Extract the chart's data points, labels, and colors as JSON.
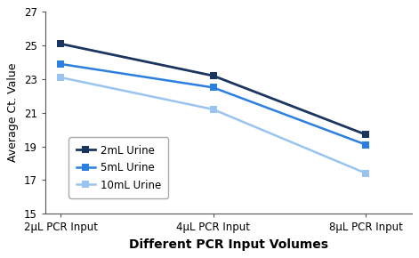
{
  "categories": [
    "2μL PCR Input",
    "4μL PCR Input",
    "8μL PCR Input"
  ],
  "series": [
    {
      "label": "2mL Urine",
      "values": [
        25.1,
        23.2,
        19.7
      ],
      "color": "#1a3560",
      "marker": "s",
      "linewidth": 2.0,
      "markersize": 6
    },
    {
      "label": "5mL Urine",
      "values": [
        23.9,
        22.5,
        19.1
      ],
      "color": "#2b7fdf",
      "marker": "s",
      "linewidth": 1.8,
      "markersize": 6
    },
    {
      "label": "10mL Urine",
      "values": [
        23.1,
        21.2,
        17.4
      ],
      "color": "#99c4ef",
      "marker": "s",
      "linewidth": 1.8,
      "markersize": 6
    }
  ],
  "xlabel": "Different PCR Input Volumes",
  "ylabel": "Average Ct. Value",
  "ylim": [
    15,
    27
  ],
  "yticks": [
    15,
    17,
    19,
    21,
    23,
    25,
    27
  ],
  "background_color": "#ffffff"
}
